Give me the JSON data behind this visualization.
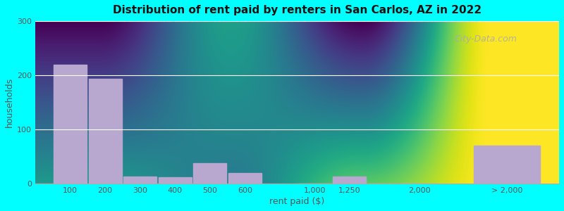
{
  "title": "Distribution of rent paid by renters in San Carlos, AZ in 2022",
  "xlabel": "rent paid ($)",
  "ylabel": "households",
  "bar_color": "#b8a8d0",
  "background_color": "#00ffff",
  "ylim": [
    0,
    300
  ],
  "yticks": [
    0,
    100,
    200,
    300
  ],
  "bar_labels": [
    "100",
    "200",
    "300",
    "400",
    "500",
    "600",
    "1,000",
    "1,250",
    "2,000",
    "> 2,000"
  ],
  "bar_values": [
    220,
    193,
    13,
    12,
    38,
    20,
    0,
    13,
    0,
    70
  ],
  "bar_positions": [
    0,
    1,
    2,
    3,
    4,
    5,
    7,
    8,
    10,
    12
  ],
  "bar_widths": [
    1,
    1,
    1,
    1,
    1,
    1,
    1,
    1,
    1,
    2
  ],
  "grad_top": "#d8eed8",
  "grad_bot": "#ede8f5",
  "watermark": "City-Data.com"
}
